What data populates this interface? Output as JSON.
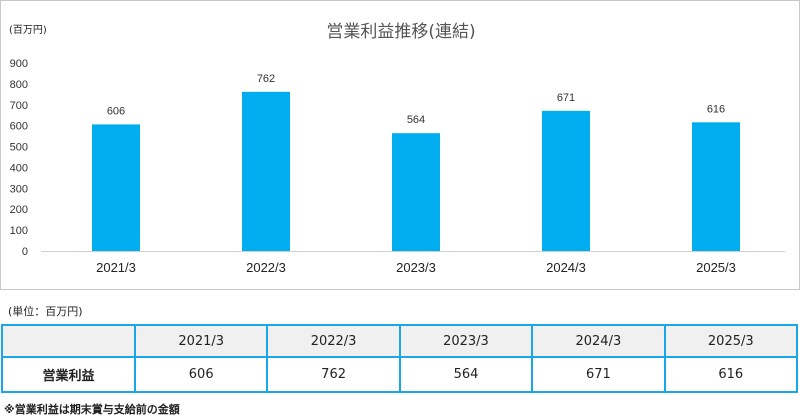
{
  "chart_data": {
    "type": "bar",
    "title": "営業利益推移(連結)",
    "unit_label": "(百万円)",
    "categories": [
      "2021/3",
      "2022/3",
      "2023/3",
      "2024/3",
      "2025/3"
    ],
    "values": [
      606,
      762,
      564,
      671,
      616
    ],
    "ylim": [
      0,
      900
    ],
    "yticks": [
      0,
      100,
      200,
      300,
      400,
      500,
      600,
      700,
      800,
      900
    ],
    "grid": false,
    "bar_color": "#00aeef"
  },
  "table": {
    "unit_label": "(単位：百万円)",
    "header_blank": "",
    "columns": [
      "2021/3",
      "2022/3",
      "2023/3",
      "2024/3",
      "2025/3"
    ],
    "row_label": "営業利益",
    "values": [
      "606",
      "762",
      "564",
      "671",
      "616"
    ],
    "border_color": "#1aa7e8",
    "header_bg": "#f0f0f0"
  },
  "footnote": "※営業利益は期末賞与支給前の金額"
}
